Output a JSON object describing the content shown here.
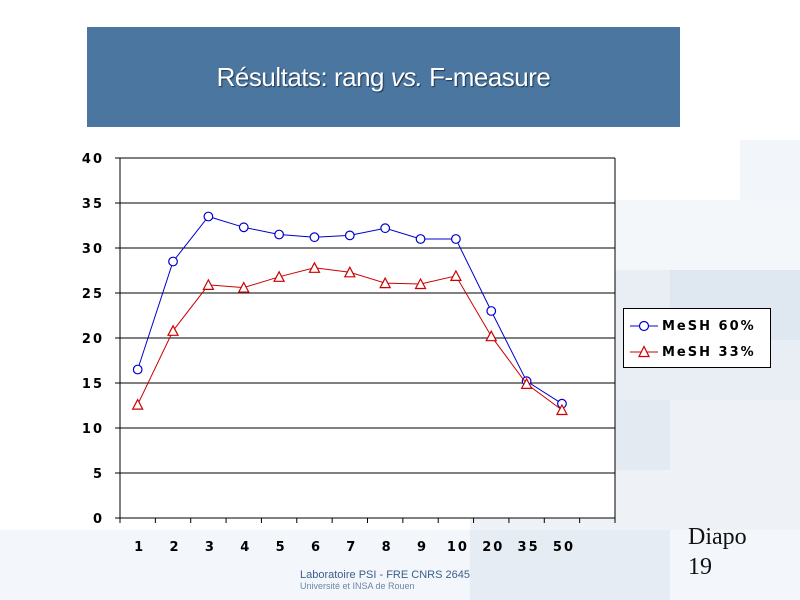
{
  "slide": {
    "title_part1": "Résultats: rang ",
    "title_part2": "vs.",
    "title_part3": " F-measure",
    "slide_label": "Diapo",
    "slide_number": "19",
    "footer_line1": "Laboratoire PSI - FRE CNRS 2645",
    "footer_line2": "Université et INSA de Rouen",
    "banner_color": "#4a76a0"
  },
  "chart_data": {
    "type": "line",
    "categories": [
      "1",
      "2",
      "3",
      "4",
      "5",
      "6",
      "7",
      "8",
      "9",
      "10",
      "20",
      "35",
      "50"
    ],
    "ylim": [
      0,
      40
    ],
    "yticks": [
      "0",
      "5",
      "10",
      "15",
      "20",
      "25",
      "30",
      "35",
      "40"
    ],
    "grid": true,
    "legend_position": "right",
    "series": [
      {
        "name": "MeSH 60%",
        "color": "#0000cc",
        "marker": "circle",
        "values": [
          16.5,
          28.5,
          33.5,
          32.3,
          31.5,
          31.2,
          31.4,
          32.2,
          31.0,
          31.0,
          23.0,
          15.2,
          12.7
        ]
      },
      {
        "name": "MeSH 33%",
        "color": "#cc0000",
        "marker": "triangle",
        "values": [
          12.6,
          20.8,
          25.9,
          25.6,
          26.8,
          27.8,
          27.3,
          26.1,
          26.0,
          26.9,
          20.2,
          14.9,
          12.0
        ]
      }
    ]
  }
}
